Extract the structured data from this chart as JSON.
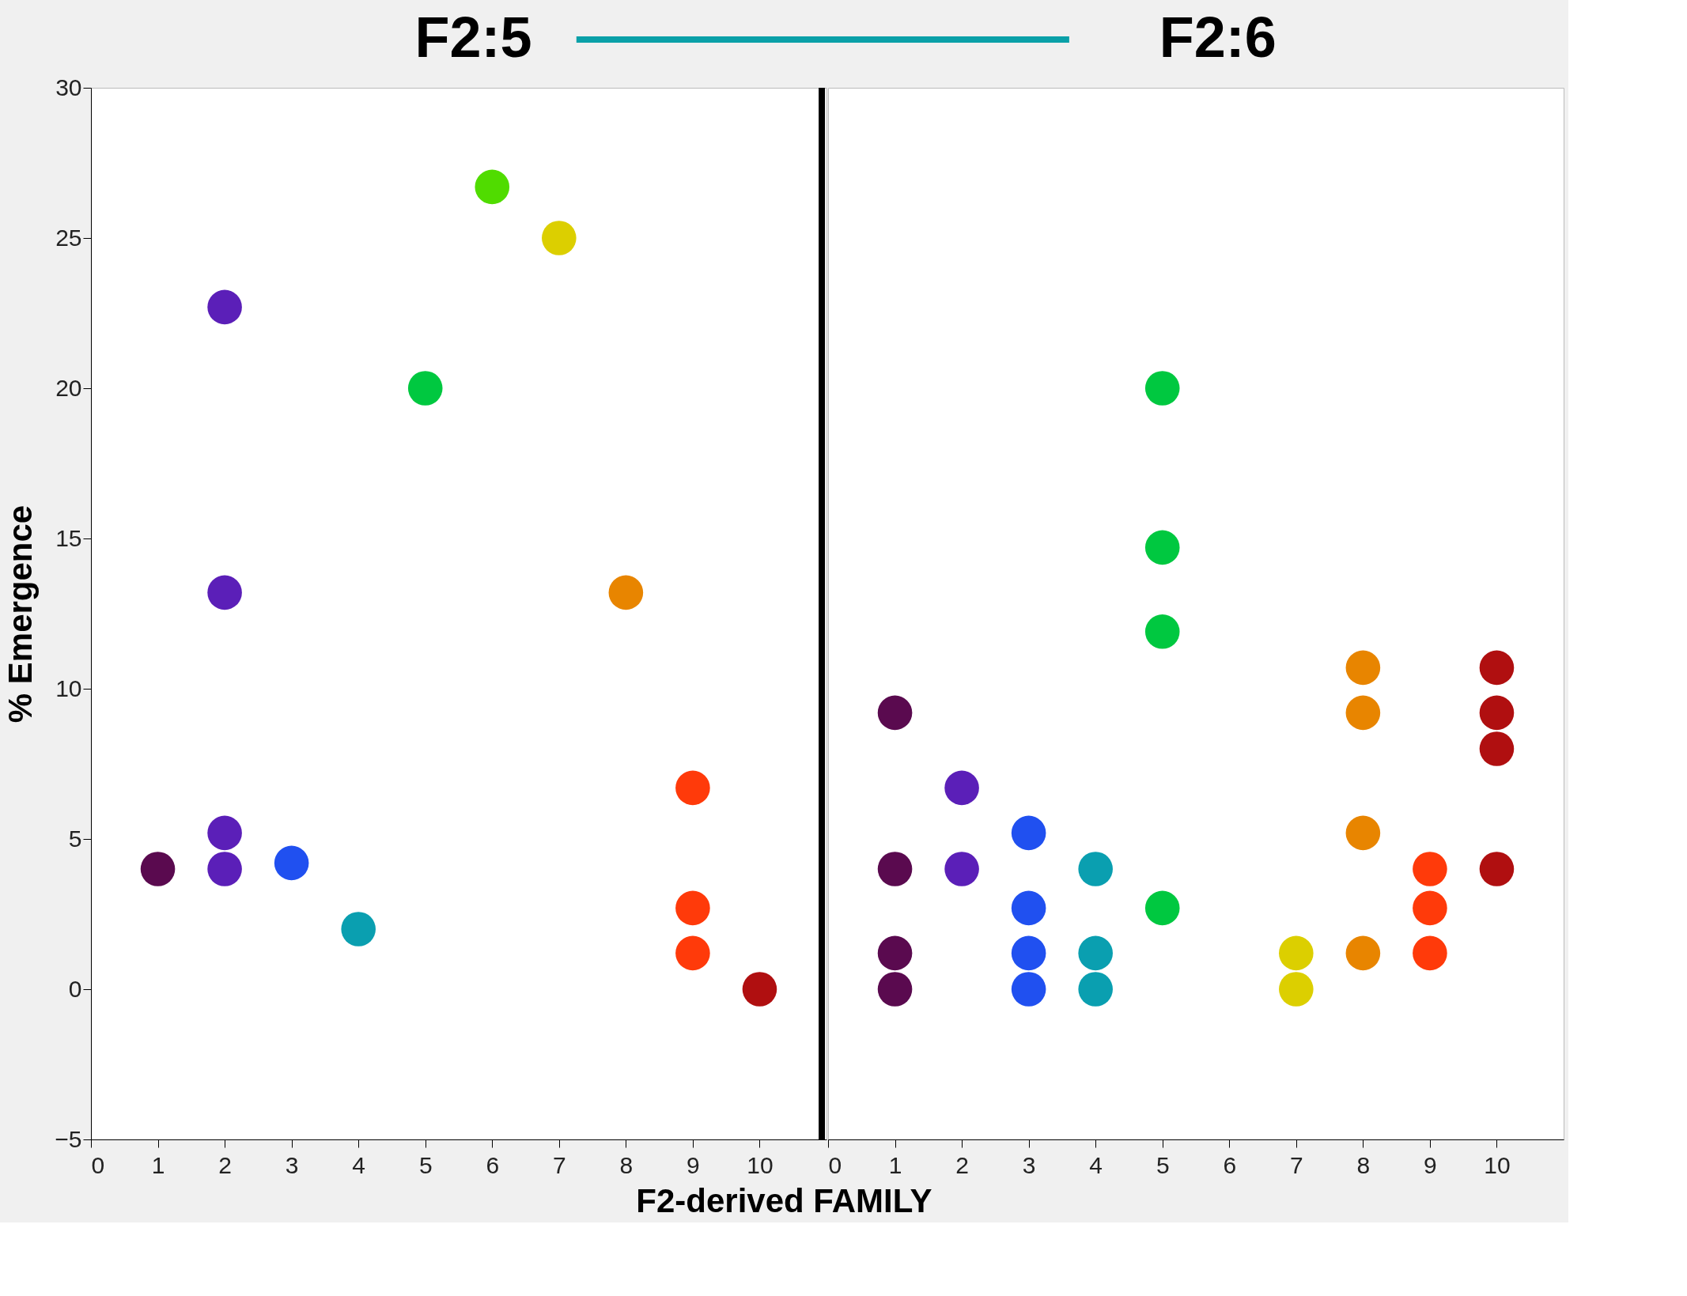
{
  "chart_data": [
    {
      "type": "scatter",
      "title": "F2:5",
      "xlabel": "F2-derived FAMILY",
      "ylabel": "% Emergence",
      "marker": "circle",
      "x": [
        1,
        2,
        2,
        2,
        2,
        3,
        4,
        5,
        6,
        7,
        8,
        9,
        9,
        9,
        10
      ],
      "values": [
        4,
        22.7,
        13.2,
        5.2,
        4,
        4.2,
        2,
        20,
        26.7,
        25,
        13.2,
        6.7,
        2.7,
        1.2,
        0
      ],
      "colors": [
        "#5a0a4f",
        "#5b1fb8",
        "#5b1fb8",
        "#5b1fb8",
        "#5b1fb8",
        "#2050f0",
        "#0a9fb0",
        "#00c840",
        "#50dc00",
        "#dccf00",
        "#e88500",
        "#ff3a0a",
        "#ff3a0a",
        "#ff3a0a",
        "#b00f10"
      ],
      "xlim": [
        0,
        11
      ],
      "xticks": [
        0,
        1,
        2,
        3,
        4,
        5,
        6,
        7,
        8,
        9,
        10
      ],
      "ylim": [
        -5,
        30
      ],
      "yticks": [
        -5,
        0,
        5,
        10,
        15,
        20,
        25,
        30
      ],
      "ref_lines": [
        {
          "axis": "x",
          "value": 10.93,
          "color": "#000000"
        }
      ]
    },
    {
      "type": "scatter",
      "title": "F2:6",
      "marker": "circle",
      "tick_labels": "x",
      "x": [
        1,
        1,
        1,
        1,
        2,
        2,
        3,
        3,
        3,
        3,
        4,
        4,
        4,
        5,
        5,
        5,
        5,
        7,
        7,
        8,
        8,
        8,
        8,
        9,
        9,
        9,
        10,
        10,
        10,
        10
      ],
      "values": [
        9.2,
        4,
        1.2,
        0,
        6.7,
        4,
        5.2,
        2.7,
        1.2,
        0,
        4,
        1.2,
        0,
        20,
        14.7,
        11.9,
        2.7,
        1.2,
        0,
        10.7,
        9.2,
        5.2,
        1.2,
        4,
        2.7,
        1.2,
        10.7,
        9.2,
        8,
        4
      ],
      "colors": [
        "#5a0a4f",
        "#5a0a4f",
        "#5a0a4f",
        "#5a0a4f",
        "#5b1fb8",
        "#5b1fb8",
        "#2050f0",
        "#2050f0",
        "#2050f0",
        "#2050f0",
        "#0a9fb0",
        "#0a9fb0",
        "#0a9fb0",
        "#00c840",
        "#00c840",
        "#00c840",
        "#00c840",
        "#dccf00",
        "#dccf00",
        "#e88500",
        "#e88500",
        "#e88500",
        "#e88500",
        "#ff3a0a",
        "#ff3a0a",
        "#ff3a0a",
        "#b00f10",
        "#b00f10",
        "#b00f10",
        "#b00f10"
      ],
      "xlim": [
        0,
        11
      ],
      "xticks": [
        0,
        1,
        2,
        3,
        4,
        5,
        6,
        7,
        8,
        9,
        10
      ],
      "ylim": [
        -5,
        30
      ],
      "yticks": [
        -5,
        0,
        5,
        10,
        15,
        20,
        25,
        30
      ]
    }
  ]
}
